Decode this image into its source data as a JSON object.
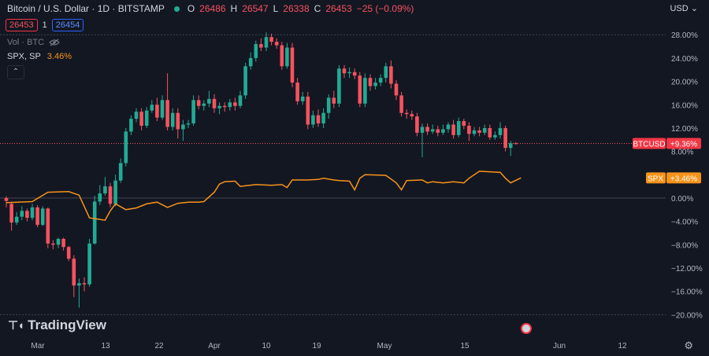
{
  "header": {
    "title": "Bitcoin / U.S. Dollar · 1D · BITSTAMP",
    "o_label": "O",
    "o_value": "26486",
    "h_label": "H",
    "h_value": "26547",
    "l_label": "L",
    "l_value": "26338",
    "c_label": "C",
    "c_value": "26453",
    "change": "−25 (−0.09%)"
  },
  "trade": {
    "sell_price": "26453",
    "spread": "1",
    "buy_price": "26454"
  },
  "volume_label": "Vol · BTC",
  "compare": {
    "symbol": "SPX, SP",
    "value": "3.46%"
  },
  "currency": "USD",
  "brand": "TradingView",
  "colors": {
    "up": "#22ab94",
    "down": "#f7525f",
    "spx": "#f7931a",
    "grid": "#363a45"
  },
  "chart_data": {
    "type": "candlestick",
    "y_axis_scale": "percent",
    "ylim": [
      -20,
      28
    ],
    "y_ticks": [
      "28.00%",
      "24.00%",
      "20.00%",
      "16.00%",
      "12.00%",
      "8.00%",
      "4.00%",
      "0.00%",
      "−4.00%",
      "−8.00%",
      "−12.00%",
      "−16.00%",
      "−20.00%"
    ],
    "x_ticks": [
      "Mar",
      "13",
      "22",
      "Apr",
      "10",
      "19",
      "May",
      "15",
      "Jun",
      "12"
    ],
    "series": [
      {
        "name": "BTCUSD",
        "last_label": "BTCUSD",
        "last_value": "+9.36%",
        "last_pct": 9.36,
        "candles": [
          [
            0,
            -0.5,
            0.3,
            -1.6,
            -1
          ],
          [
            -1,
            -4.2,
            -0.6,
            -5.6,
            -1
          ],
          [
            -4.2,
            -3.2,
            -2.4,
            -4.6,
            1
          ],
          [
            -3.2,
            -2.2,
            -1.4,
            -3.8,
            1
          ],
          [
            -2.2,
            -3.4,
            -1.8,
            -4.0,
            -1
          ],
          [
            -3.4,
            -1.6,
            -1.0,
            -3.8,
            1
          ],
          [
            -1.6,
            -4.6,
            -1.2,
            -5.0,
            -1
          ],
          [
            -4.6,
            -1.8,
            -1.4,
            -4.8,
            1
          ],
          [
            -1.8,
            -7.8,
            -1.6,
            -8.6,
            -1
          ],
          [
            -7.8,
            -8.0,
            -7.2,
            -8.8,
            -1
          ],
          [
            -8.0,
            -7.0,
            -6.8,
            -8.6,
            1
          ],
          [
            -7.0,
            -8.4,
            -6.8,
            -9.0,
            -1
          ],
          [
            -8.4,
            -10.4,
            -8.2,
            -10.8,
            -1
          ],
          [
            -10.4,
            -15.0,
            -9.8,
            -17.0,
            -1
          ],
          [
            -15.0,
            -14.6,
            -13.8,
            -18.8,
            1
          ],
          [
            -14.6,
            -14.8,
            -13.6,
            -16.0,
            -1
          ],
          [
            -14.8,
            -7.8,
            -7.0,
            -15.2,
            1
          ],
          [
            -7.8,
            -0.6,
            0.4,
            -8.0,
            1
          ],
          [
            -0.6,
            0.8,
            2.2,
            -1.2,
            1
          ],
          [
            0.8,
            2.0,
            3.6,
            0.4,
            1
          ],
          [
            2.0,
            -1.0,
            2.6,
            -1.6,
            -1
          ],
          [
            -1.0,
            3.0,
            4.0,
            -1.4,
            1
          ],
          [
            3.0,
            6.0,
            6.8,
            2.6,
            1
          ],
          [
            6.0,
            11.4,
            12.0,
            5.4,
            1
          ],
          [
            11.4,
            13.6,
            14.2,
            10.8,
            1
          ],
          [
            13.6,
            14.8,
            15.4,
            13.0,
            1
          ],
          [
            14.8,
            12.4,
            15.4,
            11.6,
            -1
          ],
          [
            12.4,
            15.0,
            15.6,
            12.0,
            1
          ],
          [
            15.0,
            16.0,
            16.8,
            14.6,
            1
          ],
          [
            16.0,
            13.8,
            17.2,
            13.2,
            -1
          ],
          [
            13.8,
            16.8,
            17.6,
            13.4,
            1
          ],
          [
            16.8,
            12.2,
            21.4,
            11.6,
            -1
          ],
          [
            12.2,
            14.6,
            15.4,
            11.6,
            1
          ],
          [
            14.6,
            11.8,
            15.4,
            10.2,
            -1
          ],
          [
            11.8,
            12.6,
            13.4,
            9.8,
            1
          ],
          [
            12.6,
            12.8,
            13.4,
            12.0,
            1
          ],
          [
            12.8,
            16.8,
            17.6,
            12.4,
            1
          ],
          [
            16.8,
            15.8,
            17.6,
            15.2,
            -1
          ],
          [
            15.8,
            16.2,
            16.8,
            15.0,
            1
          ],
          [
            16.2,
            17.0,
            18.4,
            15.6,
            1
          ],
          [
            17.0,
            15.4,
            17.8,
            14.6,
            -1
          ],
          [
            15.4,
            15.8,
            16.4,
            14.4,
            1
          ],
          [
            15.8,
            15.6,
            16.4,
            14.8,
            -1
          ],
          [
            15.6,
            16.4,
            17.0,
            15.0,
            1
          ],
          [
            16.4,
            15.8,
            17.2,
            15.0,
            -1
          ],
          [
            15.8,
            17.6,
            18.4,
            15.4,
            1
          ],
          [
            17.6,
            22.6,
            23.2,
            17.0,
            1
          ],
          [
            22.6,
            24.0,
            25.0,
            22.0,
            1
          ],
          [
            24.0,
            26.4,
            27.0,
            23.4,
            1
          ],
          [
            26.4,
            25.8,
            27.4,
            25.2,
            -1
          ],
          [
            25.8,
            27.6,
            28.4,
            25.2,
            1
          ],
          [
            27.6,
            26.8,
            28.2,
            26.2,
            -1
          ],
          [
            26.8,
            26.2,
            27.4,
            25.6,
            -1
          ],
          [
            26.2,
            22.6,
            26.8,
            22.0,
            -1
          ],
          [
            22.6,
            25.8,
            26.6,
            22.2,
            1
          ],
          [
            25.8,
            19.8,
            26.6,
            19.0,
            -1
          ],
          [
            19.8,
            16.6,
            20.6,
            16.0,
            -1
          ],
          [
            16.6,
            17.4,
            18.2,
            16.0,
            1
          ],
          [
            17.4,
            12.6,
            18.2,
            11.8,
            -1
          ],
          [
            12.6,
            14.2,
            15.0,
            12.0,
            1
          ],
          [
            14.2,
            12.8,
            15.2,
            12.2,
            -1
          ],
          [
            12.8,
            14.6,
            15.4,
            12.0,
            1
          ],
          [
            14.6,
            17.2,
            17.8,
            13.6,
            1
          ],
          [
            17.2,
            16.2,
            18.4,
            15.4,
            -1
          ],
          [
            16.2,
            22.2,
            22.8,
            15.6,
            1
          ],
          [
            22.2,
            21.4,
            22.8,
            20.6,
            -1
          ],
          [
            21.4,
            21.6,
            22.4,
            20.6,
            1
          ],
          [
            21.6,
            21.0,
            22.2,
            20.4,
            -1
          ],
          [
            21.0,
            16.2,
            21.6,
            15.6,
            -1
          ],
          [
            16.2,
            20.6,
            21.4,
            15.6,
            1
          ],
          [
            20.6,
            19.2,
            21.2,
            18.4,
            -1
          ],
          [
            19.2,
            19.8,
            20.6,
            18.6,
            1
          ],
          [
            19.8,
            20.6,
            21.2,
            19.2,
            1
          ],
          [
            20.6,
            22.6,
            23.2,
            19.8,
            1
          ],
          [
            22.6,
            19.6,
            23.6,
            18.8,
            -1
          ],
          [
            19.6,
            17.6,
            20.2,
            16.8,
            -1
          ],
          [
            17.6,
            14.6,
            18.2,
            14.0,
            -1
          ],
          [
            14.6,
            14.4,
            15.2,
            13.6,
            -1
          ],
          [
            14.4,
            14.0,
            15.0,
            13.4,
            -1
          ],
          [
            14.0,
            11.2,
            14.6,
            10.6,
            -1
          ],
          [
            11.2,
            12.2,
            12.8,
            7.0,
            1
          ],
          [
            12.2,
            11.4,
            12.8,
            10.8,
            -1
          ],
          [
            11.4,
            11.8,
            12.6,
            11.0,
            1
          ],
          [
            11.8,
            11.2,
            12.4,
            10.6,
            -1
          ],
          [
            11.2,
            11.8,
            12.6,
            10.8,
            1
          ],
          [
            11.8,
            12.6,
            13.0,
            11.2,
            1
          ],
          [
            12.6,
            10.8,
            13.4,
            10.2,
            -1
          ],
          [
            10.8,
            13.2,
            13.8,
            10.4,
            1
          ],
          [
            13.2,
            12.4,
            13.6,
            11.8,
            -1
          ],
          [
            12.4,
            11.0,
            13.0,
            9.8,
            -1
          ],
          [
            11.0,
            11.6,
            12.2,
            10.6,
            1
          ],
          [
            11.6,
            11.2,
            12.2,
            10.6,
            -1
          ],
          [
            11.2,
            12.0,
            12.6,
            10.8,
            1
          ],
          [
            12.0,
            10.4,
            12.6,
            10.0,
            -1
          ],
          [
            10.4,
            10.8,
            11.4,
            10.0,
            1
          ],
          [
            10.8,
            12.0,
            13.0,
            10.2,
            1
          ],
          [
            12.0,
            8.6,
            12.4,
            8.0,
            -1
          ],
          [
            8.6,
            9.4,
            9.8,
            7.2,
            1
          ],
          [
            9.4,
            9.4,
            9.6,
            9.2,
            -1
          ]
        ]
      },
      {
        "name": "SPX",
        "last_label": "SPX",
        "last_value": "+3.46%",
        "last_pct": 3.46,
        "points": [
          [
            0,
            -0.8
          ],
          [
            5,
            -0.6
          ],
          [
            8,
            1.0
          ],
          [
            12,
            1.1
          ],
          [
            14,
            0.5
          ],
          [
            16,
            -3.4
          ],
          [
            19,
            -3.8
          ],
          [
            20,
            -2.2
          ],
          [
            21,
            -1.0
          ],
          [
            23,
            -2.0
          ],
          [
            25,
            -1.7
          ],
          [
            27,
            -1.0
          ],
          [
            29,
            -0.7
          ],
          [
            31,
            -1.6
          ],
          [
            33,
            -0.9
          ],
          [
            35,
            -0.7
          ],
          [
            37,
            -0.7
          ],
          [
            38,
            -0.6
          ],
          [
            40,
            1.0
          ],
          [
            41,
            2.4
          ],
          [
            42,
            2.8
          ],
          [
            44,
            2.9
          ],
          [
            45,
            2.0
          ],
          [
            46,
            2.1
          ],
          [
            48,
            2.3
          ],
          [
            51,
            2.2
          ],
          [
            53,
            2.3
          ],
          [
            54,
            1.8
          ],
          [
            55,
            3.1
          ],
          [
            58,
            3.1
          ],
          [
            60,
            3.2
          ],
          [
            61,
            3.4
          ],
          [
            63,
            3.1
          ],
          [
            64,
            3.0
          ],
          [
            66,
            2.9
          ],
          [
            67,
            1.4
          ],
          [
            68,
            3.4
          ],
          [
            69,
            4.0
          ],
          [
            73,
            3.9
          ],
          [
            75,
            2.6
          ],
          [
            76,
            1.4
          ],
          [
            77,
            3.0
          ],
          [
            80,
            3.1
          ],
          [
            81,
            2.6
          ],
          [
            82,
            2.8
          ],
          [
            84,
            2.6
          ],
          [
            86,
            2.8
          ],
          [
            88,
            2.6
          ],
          [
            89,
            3.4
          ],
          [
            91,
            4.6
          ],
          [
            95,
            4.4
          ],
          [
            96,
            3.4
          ],
          [
            97,
            2.6
          ],
          [
            99,
            3.46
          ]
        ]
      }
    ]
  }
}
